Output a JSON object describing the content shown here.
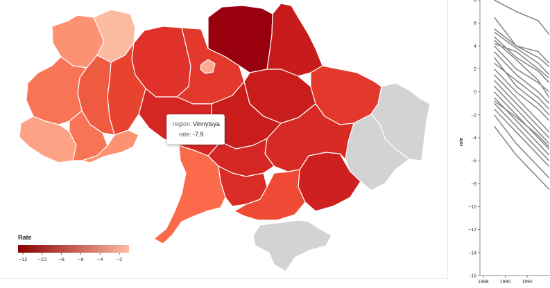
{
  "map": {
    "tooltip": {
      "region_key": "region:",
      "region_value": "Vinnytsya",
      "rate_key": "rate:",
      "rate_value": "-7.9"
    },
    "legend": {
      "title": "Rate",
      "ticks": [
        "−12",
        "−10",
        "−8",
        "−6",
        "−4",
        "−2"
      ],
      "tick_values": [
        -12,
        -10,
        -8,
        -6,
        -4,
        -2
      ],
      "domain": [
        -12.5,
        -1
      ],
      "color_low": "#8b0000",
      "color_high": "#fcbba1"
    },
    "no_data_color": "#d3d3d3",
    "region_border_color": "#ffffff"
  },
  "chart_data": {
    "type": "line",
    "title": "",
    "xlabel": "",
    "ylabel": "rate",
    "x_ticks": [
      "1988",
      "1990",
      "1992"
    ],
    "x_tick_values": [
      1988,
      1990,
      1992
    ],
    "y_ticks": [
      "−16",
      "−14",
      "−12",
      "−10",
      "−8",
      "−6",
      "−4",
      "−2",
      "0",
      "2",
      "4",
      "6",
      "8"
    ],
    "y_tick_values": [
      -16,
      -14,
      -12,
      -10,
      -8,
      -6,
      -4,
      -2,
      0,
      2,
      4,
      6,
      8
    ],
    "line_color": "#888888",
    "x": [
      1989,
      1991,
      1993,
      1994
    ],
    "series": [
      {
        "values": [
          8.0,
          7.0,
          6.2,
          5.0
        ]
      },
      {
        "values": [
          6.5,
          4.0,
          3.5,
          2.5
        ]
      },
      {
        "values": [
          5.5,
          4.0,
          3.0,
          2.2
        ]
      },
      {
        "values": [
          5.2,
          3.8,
          2.5,
          1.5
        ]
      },
      {
        "values": [
          4.8,
          3.0,
          1.8,
          0.8
        ]
      },
      {
        "values": [
          4.2,
          3.5,
          2.0,
          1.2
        ]
      },
      {
        "values": [
          4.0,
          2.0,
          0.8,
          0.0
        ]
      },
      {
        "values": [
          3.5,
          1.5,
          0.0,
          -1.0
        ]
      },
      {
        "values": [
          2.5,
          1.0,
          -0.5,
          -1.5
        ]
      },
      {
        "values": [
          2.0,
          0.0,
          -1.5,
          -2.5
        ]
      },
      {
        "values": [
          1.5,
          -0.5,
          -2.5,
          -3.5
        ]
      },
      {
        "values": [
          1.0,
          -1.0,
          -3.0,
          -4.0
        ]
      },
      {
        "values": [
          0.5,
          -1.5,
          -3.5,
          -4.5
        ]
      },
      {
        "values": [
          0.0,
          -2.0,
          -4.0,
          -5.0
        ]
      },
      {
        "values": [
          -0.5,
          -2.5,
          -4.5,
          -5.5
        ]
      },
      {
        "values": [
          -1.0,
          -3.0,
          -5.0,
          -6.0
        ]
      },
      {
        "values": [
          -1.5,
          -3.5,
          -5.5,
          -6.5
        ]
      },
      {
        "values": [
          -2.0,
          -4.5,
          -6.5,
          -7.5
        ]
      },
      {
        "values": [
          -3.0,
          -5.5,
          -7.5,
          -8.5
        ]
      },
      {
        "values": [
          4.5,
          2.8,
          1.0,
          -0.5
        ]
      },
      {
        "values": [
          3.0,
          0.5,
          -1.0,
          -2.0
        ]
      },
      {
        "values": [
          -0.8,
          -2.2,
          -3.8,
          -4.8
        ]
      }
    ]
  }
}
